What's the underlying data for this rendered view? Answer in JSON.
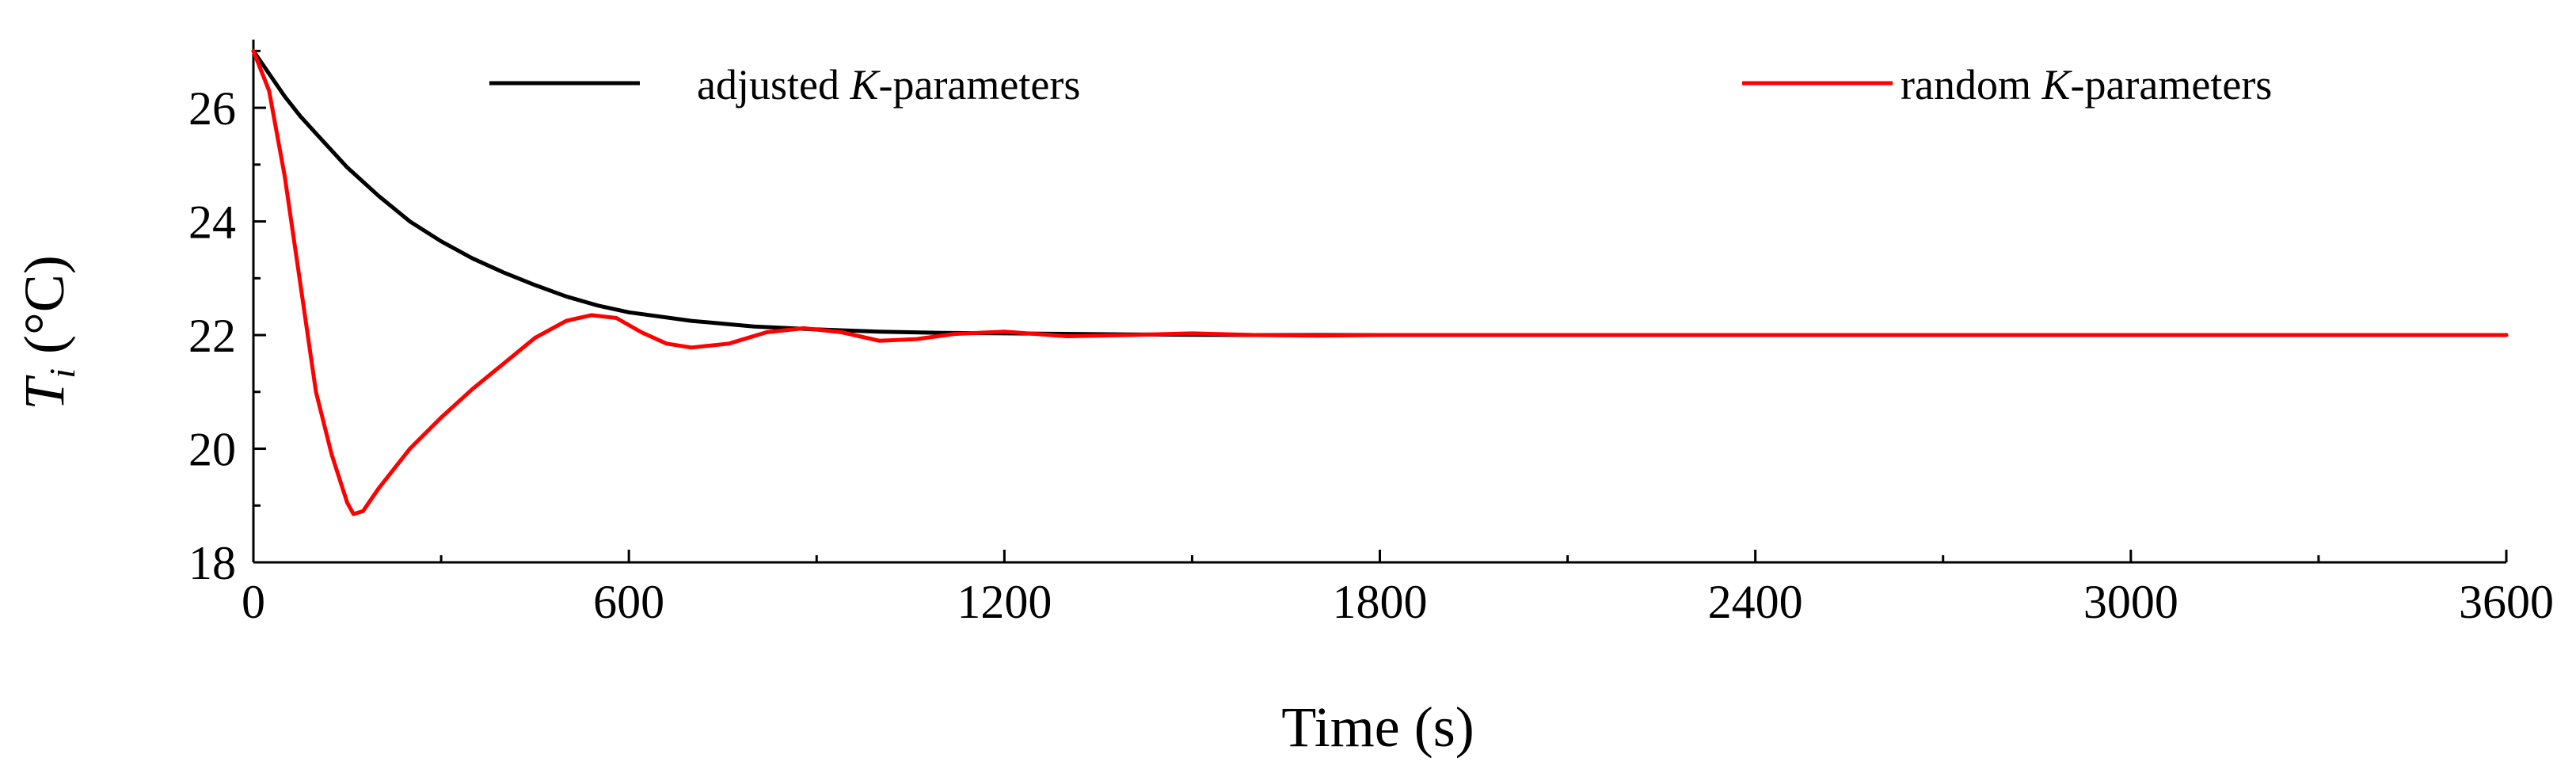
{
  "chart_data": {
    "type": "line",
    "title": "",
    "xlabel": "Time (s)",
    "ylabel_symbol": "T",
    "ylabel_subscript": "i",
    "ylabel_unit": " (°C)",
    "xlim": [
      0,
      3600
    ],
    "ylim": [
      18,
      27.2
    ],
    "xticks": [
      0,
      600,
      1200,
      1800,
      2400,
      3000,
      3600
    ],
    "xtick_labels": [
      "0",
      "600",
      "1200",
      "1800",
      "2400",
      "3000",
      "3600"
    ],
    "xminor": [
      300,
      900,
      1500,
      2100,
      2700,
      3300
    ],
    "yticks": [
      18,
      20,
      22,
      24,
      26
    ],
    "ytick_labels": [
      "18",
      "20",
      "22",
      "24",
      "26"
    ],
    "yminor": [
      19,
      21,
      23,
      25,
      27
    ],
    "grid": false,
    "legend_placement": "top",
    "series": [
      {
        "name": "adjusted K-parameters",
        "legend_prefix": "adjusted ",
        "legend_italic": "K",
        "legend_suffix": "-parameters",
        "color": "#000000",
        "x": [
          0,
          25,
          50,
          75,
          100,
          150,
          200,
          250,
          300,
          350,
          400,
          450,
          500,
          550,
          600,
          700,
          800,
          900,
          1000,
          1100,
          1200,
          1400,
          1600,
          1800,
          2400,
          3000,
          3600
        ],
        "y": [
          27.0,
          26.6,
          26.2,
          25.85,
          25.55,
          24.95,
          24.45,
          24.0,
          23.65,
          23.35,
          23.1,
          22.88,
          22.68,
          22.52,
          22.4,
          22.25,
          22.15,
          22.1,
          22.06,
          22.04,
          22.03,
          22.01,
          22.0,
          22.0,
          22.0,
          22.0,
          22.0
        ]
      },
      {
        "name": "random K-parameters",
        "legend_prefix": "random ",
        "legend_italic": "K",
        "legend_suffix": "-parameters",
        "color": "#ff0000",
        "x": [
          0,
          25,
          50,
          75,
          100,
          125,
          150,
          160,
          175,
          200,
          250,
          300,
          350,
          400,
          450,
          500,
          540,
          580,
          620,
          660,
          700,
          760,
          820,
          880,
          940,
          1000,
          1060,
          1120,
          1200,
          1300,
          1400,
          1500,
          1600,
          1700,
          1800,
          2400,
          3000,
          3600
        ],
        "y": [
          27.0,
          26.3,
          24.8,
          22.9,
          21.0,
          19.9,
          19.05,
          18.85,
          18.9,
          19.3,
          20.0,
          20.55,
          21.05,
          21.5,
          21.95,
          22.25,
          22.35,
          22.3,
          22.05,
          21.85,
          21.78,
          21.85,
          22.05,
          22.12,
          22.05,
          21.9,
          21.93,
          22.02,
          22.06,
          21.98,
          22.0,
          22.03,
          22.0,
          21.99,
          22.0,
          22.0,
          22.0,
          22.0
        ]
      }
    ]
  }
}
